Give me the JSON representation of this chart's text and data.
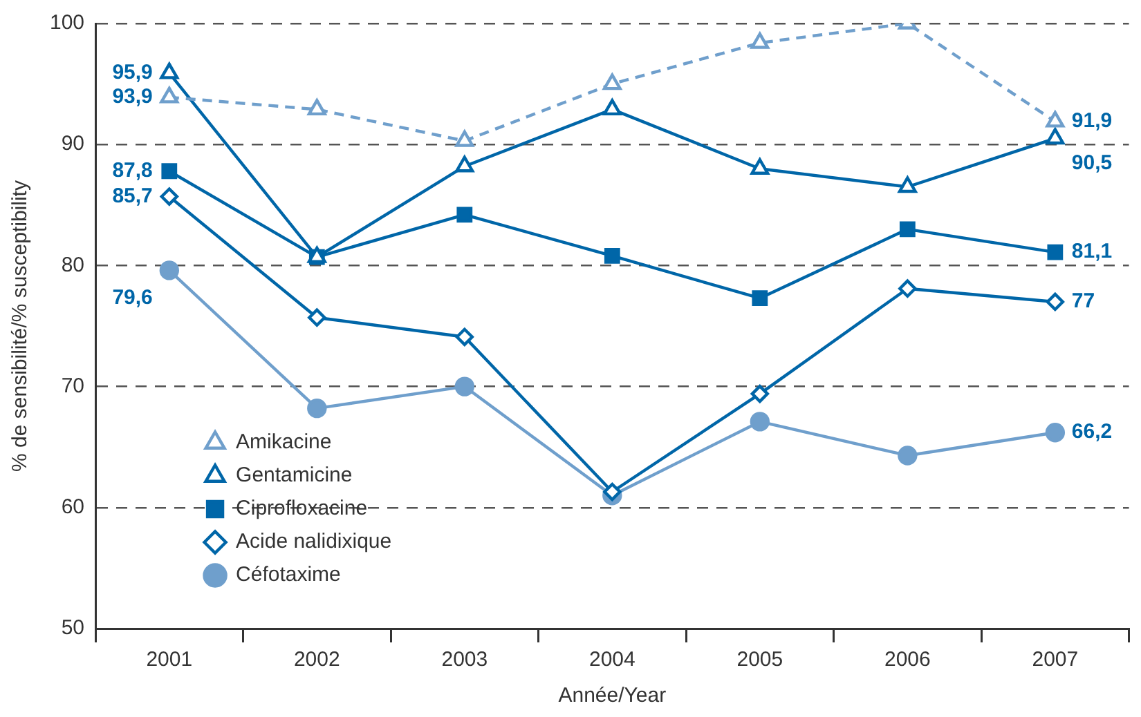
{
  "chart_data": {
    "type": "line",
    "xlabel": "Année/Year",
    "ylabel": "% de sensibilité/% susceptibility",
    "categories": [
      "2001",
      "2002",
      "2003",
      "2004",
      "2005",
      "2006",
      "2007"
    ],
    "ylim": [
      50,
      100
    ],
    "yticks": [
      50,
      60,
      70,
      80,
      90,
      100
    ],
    "grid": "y",
    "legend": "bottom left",
    "series": [
      {
        "name": "Amikacine",
        "color": "#6f9fcc",
        "marker": "triangle",
        "line_style": "dashed",
        "values": [
          93.9,
          92.9,
          90.3,
          95.0,
          98.4,
          100,
          91.9
        ],
        "value_labels": [
          "93,9",
          null,
          null,
          null,
          null,
          null,
          "91,9"
        ]
      },
      {
        "name": "Gentamicine",
        "color": "#0066a8",
        "marker": "triangle",
        "line_style": "solid",
        "values": [
          95.9,
          80.7,
          88.2,
          92.9,
          88.0,
          86.5,
          90.5
        ],
        "value_labels": [
          "95,9",
          null,
          null,
          null,
          null,
          null,
          "90,5"
        ]
      },
      {
        "name": "Ciprofloxacine",
        "color": "#0066a8",
        "marker": "square",
        "line_style": "solid",
        "values": [
          87.8,
          80.7,
          84.2,
          80.8,
          77.3,
          83.0,
          81.1
        ],
        "value_labels": [
          "87,8",
          null,
          null,
          null,
          null,
          null,
          "81,1"
        ]
      },
      {
        "name": "Acide nalidixique",
        "color": "#0066a8",
        "marker": "diamond",
        "line_style": "solid",
        "values": [
          85.7,
          75.7,
          74.1,
          61.3,
          69.4,
          78.1,
          77
        ],
        "value_labels": [
          "85,7",
          null,
          null,
          null,
          null,
          null,
          "77"
        ]
      },
      {
        "name": "Céfotaxime",
        "color": "#6f9fcc",
        "marker": "circle",
        "line_style": "solid",
        "values": [
          79.6,
          68.2,
          70.0,
          61.0,
          67.1,
          64.3,
          66.2
        ],
        "value_labels": [
          "79,6",
          null,
          null,
          null,
          null,
          null,
          "66,2"
        ]
      }
    ]
  }
}
